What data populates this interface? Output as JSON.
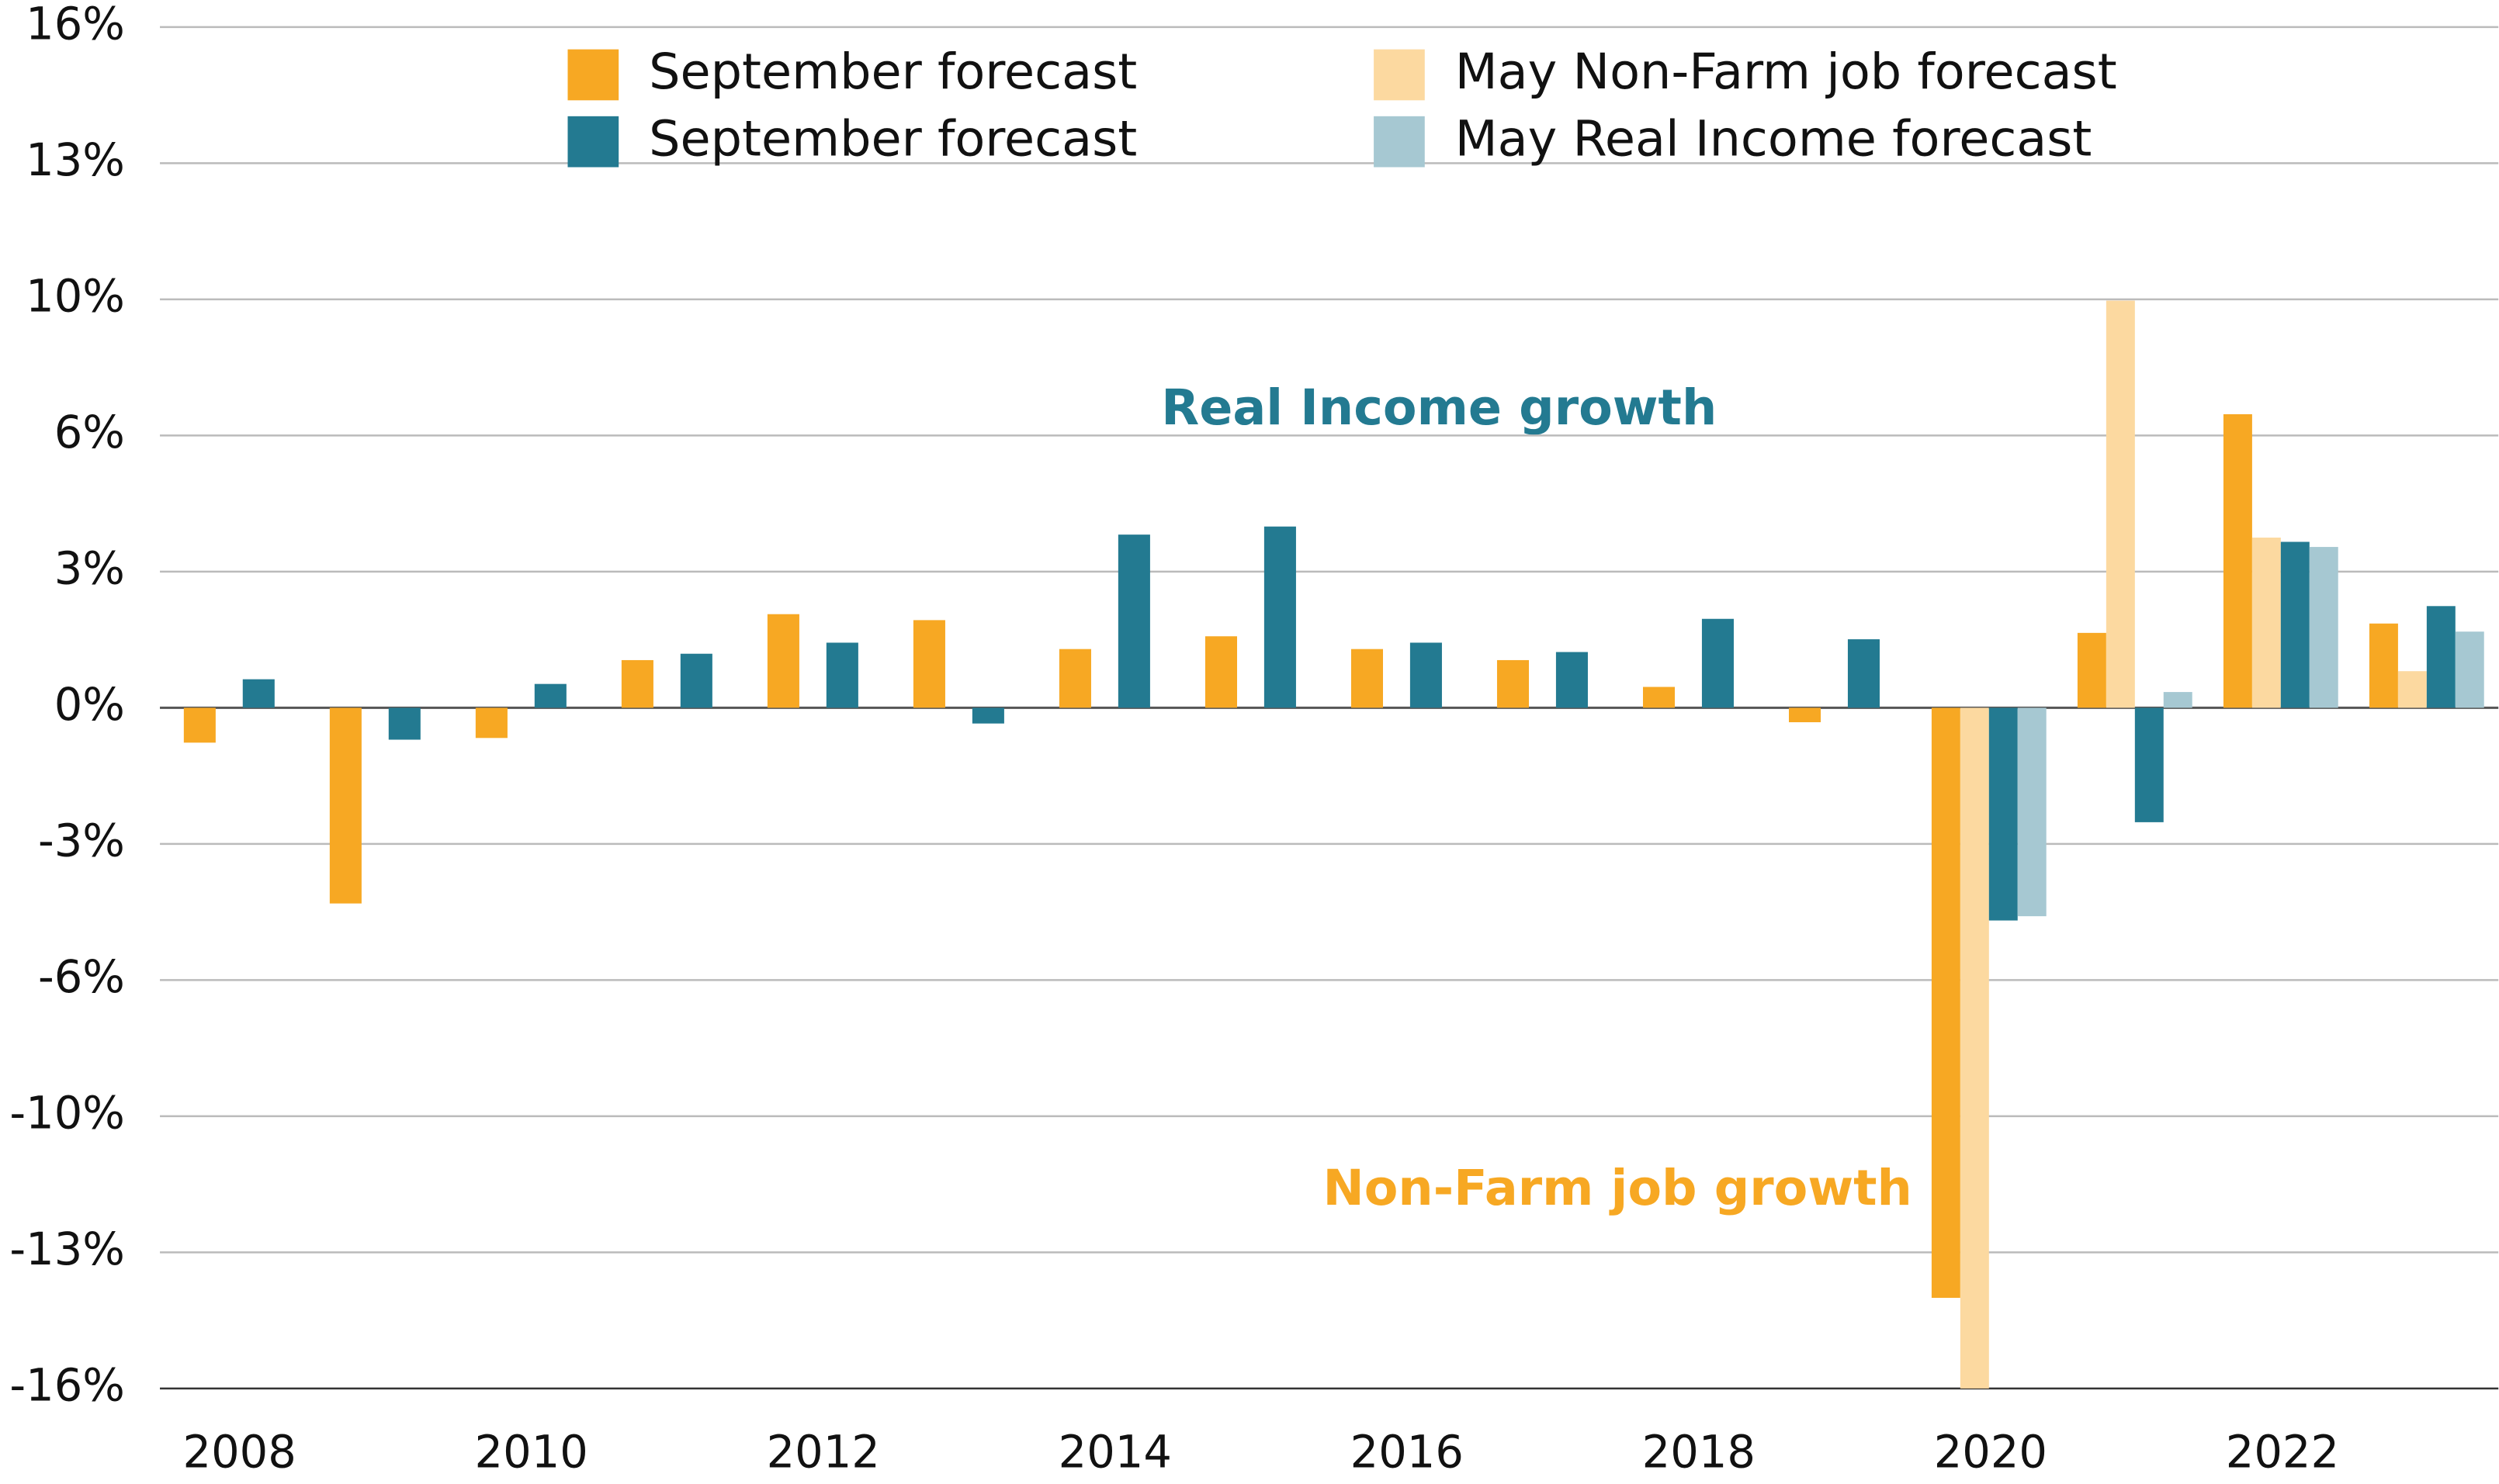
{
  "chart_data": {
    "type": "bar",
    "categories": [
      "2008",
      null,
      "2010",
      null,
      "2012",
      null,
      "2014",
      null,
      "2016",
      null,
      "2018",
      null,
      "2020",
      null,
      "2022",
      null
    ],
    "series": [
      {
        "name": "September forecast",
        "color": "#f7a823",
        "values": [
          -0.82,
          -4.6,
          -0.71,
          1.12,
          2.2,
          2.06,
          1.38,
          1.68,
          1.38,
          1.12,
          0.49,
          -0.34,
          -13.87,
          1.76,
          6.9,
          1.98
        ]
      },
      {
        "name": "May Non-Farm job forecast",
        "color": "#fcd9a0",
        "values": [
          null,
          null,
          null,
          null,
          null,
          null,
          null,
          null,
          null,
          null,
          null,
          null,
          -16.0,
          9.57,
          4.0,
          0.86
        ]
      },
      {
        "name": "September forecast",
        "color": "#237a91",
        "values": [
          0.67,
          -0.75,
          0.56,
          1.27,
          1.53,
          -0.37,
          4.07,
          4.26,
          1.53,
          1.31,
          2.09,
          1.61,
          -5.0,
          -2.69,
          3.9,
          2.39
        ]
      },
      {
        "name": "May Real Income forecast",
        "color": "#a6c8d2",
        "values": [
          null,
          null,
          null,
          null,
          null,
          null,
          null,
          null,
          null,
          null,
          null,
          null,
          -4.9,
          0.37,
          3.78,
          1.79
        ]
      }
    ],
    "ylim": [
      -16,
      16
    ],
    "yticks": [
      {
        "value": 16,
        "label": "16%"
      },
      {
        "value": 12.8,
        "label": "13%"
      },
      {
        "value": 9.6,
        "label": "10%"
      },
      {
        "value": 6.4,
        "label": "6%"
      },
      {
        "value": 3.2,
        "label": "3%"
      },
      {
        "value": 0,
        "label": "0%"
      },
      {
        "value": -3.2,
        "label": "-3%"
      },
      {
        "value": -6.4,
        "label": "-6%"
      },
      {
        "value": -9.6,
        "label": "-10%"
      },
      {
        "value": -12.8,
        "label": "-13%"
      },
      {
        "value": -16,
        "label": "-16%"
      }
    ],
    "grid": true,
    "annotations": [
      {
        "text": "Real Income growth",
        "color": "#237a91"
      },
      {
        "text": "Non-Farm job growth",
        "color": "#f7a823"
      }
    ]
  }
}
